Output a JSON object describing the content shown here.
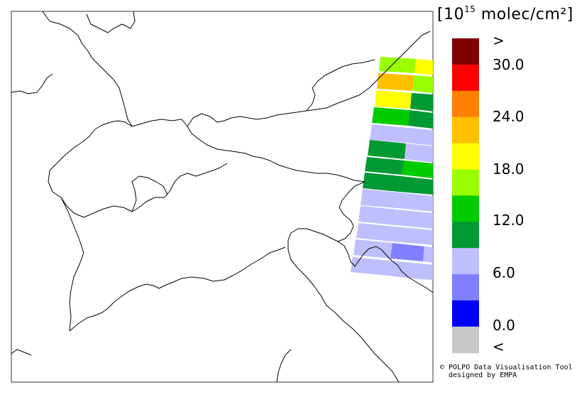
{
  "legend": {
    "unit_prefix": "[10",
    "unit_exponent": "15",
    "unit_suffix": " molec/cm²]",
    "labels": [
      ">",
      "30.0",
      "24.0",
      "18.0",
      "12.0",
      "6.0",
      "0.0",
      "<"
    ],
    "bins": [
      {
        "color": "#800000"
      },
      {
        "color": "#ff0000"
      },
      {
        "color": "#ff8000"
      },
      {
        "color": "#ffc000"
      },
      {
        "color": "#ffff00"
      },
      {
        "color": "#99ff00"
      },
      {
        "color": "#00cc00"
      },
      {
        "color": "#009933"
      },
      {
        "color": "#bfbfff"
      },
      {
        "color": "#8080ff"
      },
      {
        "color": "#0000ff"
      },
      {
        "color": "#c8c8c8"
      }
    ]
  },
  "credit": {
    "line1": "© POLPO Data Visualisation Tool",
    "line2": "designed by EMPA"
  }
}
